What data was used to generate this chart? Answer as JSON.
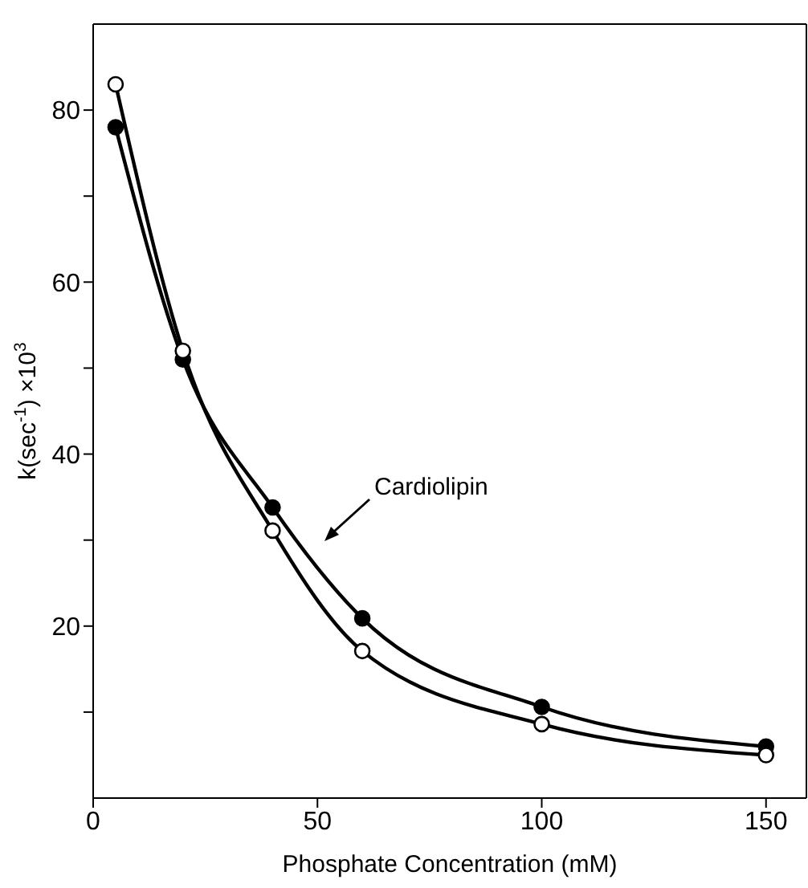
{
  "chart_data": {
    "type": "line",
    "xlabel": "Phosphate Concentration (mM)",
    "ylabel": "k(sec$^{-1}$) ×10$^{3}$",
    "x": [
      5,
      20,
      40,
      60,
      100,
      150
    ],
    "series": [
      {
        "color": "#000000",
        "values": [
          78,
          51,
          33.8,
          20.9,
          10.6,
          6
        ]
      },
      {
        "color": "#000000",
        "values": [
          83,
          52,
          31.1,
          17.1,
          8.6,
          5
        ]
      }
    ],
    "xlim": [
      0,
      159
    ],
    "xticks": [
      0,
      50,
      100,
      150
    ],
    "ylim": [
      0,
      90
    ],
    "yticks": [
      {
        "value": 10,
        "label": null
      },
      20,
      {
        "value": 30,
        "label": null
      },
      40,
      {
        "value": 50,
        "label": null
      },
      60,
      {
        "value": 70,
        "label": null
      },
      80
    ],
    "marker": "circle",
    "line_style": "solid",
    "grid": false,
    "annotations": [
      "Cardiolipin"
    ]
  }
}
